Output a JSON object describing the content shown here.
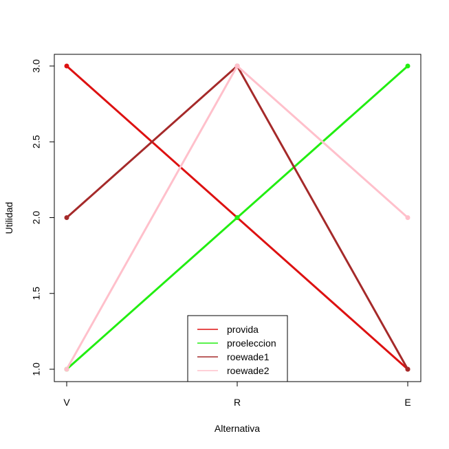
{
  "chart_data": {
    "type": "line",
    "title": "",
    "xlabel": "Alternativa",
    "ylabel": "Utilidad",
    "categories": [
      "V",
      "R",
      "E"
    ],
    "ylim": [
      1.0,
      3.0
    ],
    "y_ticks": [
      "1.0",
      "1.5",
      "2.0",
      "2.5",
      "3.0"
    ],
    "y_tick_values": [
      1.0,
      1.5,
      2.0,
      2.5,
      3.0
    ],
    "grid": false,
    "legend_position": "bottom-center",
    "series": [
      {
        "name": "provida",
        "values": [
          3,
          2,
          1
        ],
        "color": "#dd1111"
      },
      {
        "name": "proeleccion",
        "values": [
          1,
          2,
          3
        ],
        "color": "#22ee11"
      },
      {
        "name": "roewade1",
        "values": [
          2,
          3,
          1
        ],
        "color": "#a52a2a"
      },
      {
        "name": "roewade2",
        "values": [
          1,
          3,
          2
        ],
        "color": "#ffc0cb"
      }
    ]
  }
}
